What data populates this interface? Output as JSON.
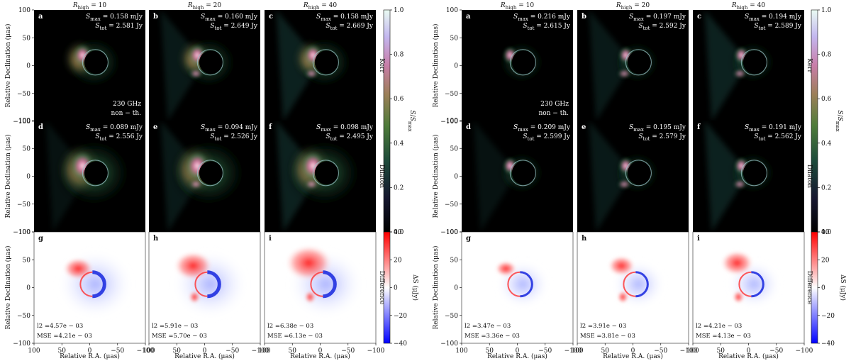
{
  "column_headers": [
    "R_high = 10",
    "R_high = 20",
    "R_high = 40"
  ],
  "axis": {
    "ylabel": "Relative Declination (μas)",
    "xlabel": "Relative R.A. (μas)",
    "y_ticks": [
      "100",
      "50",
      "0",
      "−50",
      "−100"
    ],
    "x_ticks": [
      "100",
      "50",
      "0",
      "−50",
      "−100"
    ]
  },
  "row_labels": [
    "Kerr",
    "Dilaton",
    "Difference"
  ],
  "colorbars": {
    "intensity": {
      "label": "S/S_max",
      "ticks": [
        "1.0",
        "0.8",
        "0.6",
        "0.4",
        "0.2",
        "0.0"
      ]
    },
    "difference": {
      "label": "ΔS (μJy)",
      "ticks": [
        "40",
        "20",
        "0",
        "−20",
        "−40"
      ]
    }
  },
  "corner_annotation": [
    "230 GHz",
    "non − th."
  ],
  "figures": [
    {
      "kerr": [
        {
          "letter": "a",
          "smax": "S_max = 0.158 mJy",
          "stot": "S_tot = 2.581 Jy"
        },
        {
          "letter": "b",
          "smax": "S_max = 0.160 mJy",
          "stot": "S_tot = 2.649 Jy"
        },
        {
          "letter": "c",
          "smax": "S_max = 0.158 mJy",
          "stot": "S_tot = 2.669 Jy"
        }
      ],
      "dilaton": [
        {
          "letter": "d",
          "smax": "S_max = 0.089 mJy",
          "stot": "S_tot = 2.556 Jy"
        },
        {
          "letter": "e",
          "smax": "S_max = 0.094 mJy",
          "stot": "S_tot = 2.526 Jy"
        },
        {
          "letter": "f",
          "smax": "S_max = 0.098 mJy",
          "stot": "S_tot = 2.495 Jy"
        }
      ],
      "diff": [
        {
          "letter": "g",
          "l2": "l2 =4.57e − 03",
          "mse": "MSE =4.21e − 03"
        },
        {
          "letter": "h",
          "l2": "l2 =5.91e − 03",
          "mse": "MSE =5.70e − 03"
        },
        {
          "letter": "i",
          "l2": "l2 =6.38e − 03",
          "mse": "MSE =6.13e − 03"
        }
      ]
    },
    {
      "kerr": [
        {
          "letter": "a",
          "smax": "S_max = 0.216 mJy",
          "stot": "S_tot = 2.615 Jy"
        },
        {
          "letter": "b",
          "smax": "S_max = 0.197 mJy",
          "stot": "S_tot = 2.592 Jy"
        },
        {
          "letter": "c",
          "smax": "S_max = 0.194 mJy",
          "stot": "S_tot = 2.589 Jy"
        }
      ],
      "dilaton": [
        {
          "letter": "d",
          "smax": "S_max = 0.209 mJy",
          "stot": "S_tot = 2.599 Jy"
        },
        {
          "letter": "e",
          "smax": "S_max = 0.195 mJy",
          "stot": "S_tot = 2.579 Jy"
        },
        {
          "letter": "f",
          "smax": "S_max = 0.191 mJy",
          "stot": "S_tot = 2.562 Jy"
        }
      ],
      "diff": [
        {
          "letter": "g",
          "l2": "l2 =3.47e − 03",
          "mse": "MSE =3.36e − 03"
        },
        {
          "letter": "h",
          "l2": "l2 =3.91e − 03",
          "mse": "MSE =3.81e − 03"
        },
        {
          "letter": "i",
          "l2": "l2 =4.21e − 03",
          "mse": "MSE =4.13e − 03"
        }
      ]
    }
  ]
}
